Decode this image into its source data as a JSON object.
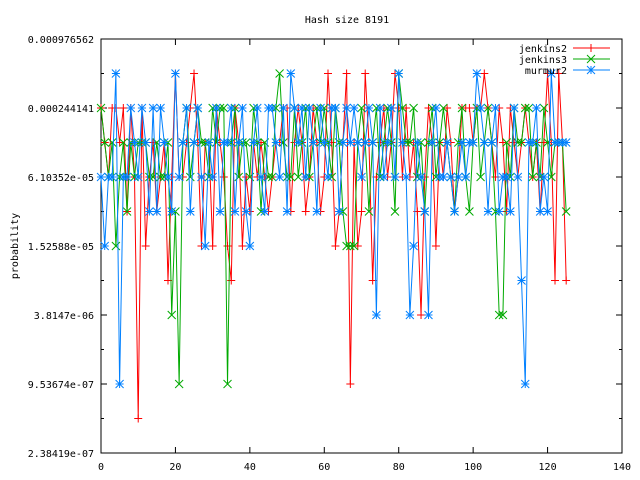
{
  "chart_data": {
    "type": "line",
    "title": "Hash size 8191",
    "xlabel": "",
    "ylabel": "probability",
    "xlim": [
      0,
      140
    ],
    "ylim": [
      2.38419e-07,
      0.000976562
    ],
    "yscale": "log2",
    "xticks": [
      "0",
      "20",
      "40",
      "60",
      "80",
      "100",
      "120",
      "140"
    ],
    "xtick_values": [
      0,
      20,
      40,
      60,
      80,
      100,
      120,
      140
    ],
    "yticks": [
      "0.000976562",
      "0.000244141",
      "6.10352e-05",
      "1.52588e-05",
      "3.8147e-06",
      "9.53674e-07",
      "2.38419e-07"
    ],
    "ytick_exponents": [
      -10,
      -12,
      -14,
      -16,
      -18,
      -20,
      -22
    ],
    "legend_position": "top-right",
    "series_note": "values given as base-2 exponents of probability (probability = 2^v), x = 0..125",
    "series": [
      {
        "name": "jenkins2",
        "color": "#ff0000",
        "marker": "plus",
        "values": [
          -12,
          -13,
          -14,
          -12,
          -12,
          -13,
          -12,
          -15,
          -12,
          -14,
          -21,
          -12,
          -16,
          -14,
          -13,
          -15,
          -14,
          -13,
          -17,
          -14,
          -11,
          -14,
          -14,
          -13,
          -12,
          -11,
          -13,
          -16,
          -13,
          -13,
          -16,
          -12,
          -13,
          -14,
          -16,
          -17,
          -12,
          -13,
          -16,
          -14,
          -15,
          -13,
          -14,
          -13,
          -14,
          -15,
          -14,
          -13,
          -13,
          -12,
          -12,
          -15,
          -13,
          -12,
          -13,
          -15,
          -14,
          -12,
          -13,
          -15,
          -14,
          -11,
          -13,
          -16,
          -15,
          -13,
          -11,
          -20,
          -13,
          -16,
          -15,
          -11,
          -13,
          -17,
          -14,
          -13,
          -12,
          -14,
          -13,
          -11,
          -12,
          -14,
          -12,
          -14,
          -13,
          -15,
          -18,
          -14,
          -12,
          -13,
          -16,
          -13,
          -14,
          -12,
          -13,
          -15,
          -14,
          -12,
          -12,
          -12,
          -13,
          -12,
          -12,
          -11,
          -12,
          -13,
          -14,
          -12,
          -13,
          -15,
          -12,
          -13,
          -14,
          -13,
          -12,
          -13,
          -14,
          -13,
          -15,
          -13,
          -11,
          -13,
          -17,
          -11,
          -13,
          -17
        ]
      },
      {
        "name": "jenkins3",
        "color": "#00aa00",
        "marker": "cross",
        "values": [
          -12,
          -13,
          -14,
          -13,
          -16,
          -14,
          -13,
          -15,
          -13,
          -14,
          -13,
          -13,
          -13,
          -14,
          -14,
          -13,
          -14,
          -14,
          -13,
          -18,
          -15,
          -20,
          -13,
          -12,
          -14,
          -13,
          -12,
          -13,
          -13,
          -14,
          -12,
          -13,
          -12,
          -12,
          -20,
          -13,
          -12,
          -14,
          -13,
          -13,
          -14,
          -12,
          -13,
          -15,
          -13,
          -14,
          -14,
          -12,
          -11,
          -13,
          -14,
          -14,
          -12,
          -14,
          -13,
          -12,
          -14,
          -13,
          -12,
          -13,
          -12,
          -13,
          -14,
          -12,
          -13,
          -15,
          -16,
          -16,
          -16,
          -13,
          -12,
          -13,
          -15,
          -13,
          -12,
          -14,
          -13,
          -12,
          -13,
          -15,
          -11,
          -12,
          -13,
          -13,
          -12,
          -14,
          -13,
          -15,
          -13,
          -12,
          -14,
          -13,
          -12,
          -13,
          -14,
          -15,
          -13,
          -12,
          -14,
          -15,
          -13,
          -12,
          -14,
          -13,
          -12,
          -13,
          -15,
          -18,
          -18,
          -13,
          -14,
          -12,
          -13,
          -13,
          -12,
          -12,
          -14,
          -13,
          -14,
          -12,
          -13,
          -14,
          -13,
          -13,
          -13,
          -15
        ]
      },
      {
        "name": "murmur2",
        "color": "#0080ff",
        "marker": "star",
        "values": [
          -14,
          -16,
          -14,
          -14,
          -11,
          -20,
          -14,
          -14,
          -12,
          -13,
          -14,
          -12,
          -13,
          -15,
          -12,
          -15,
          -12,
          -13,
          -14,
          -15,
          -11,
          -14,
          -13,
          -12,
          -15,
          -13,
          -12,
          -14,
          -16,
          -13,
          -14,
          -12,
          -15,
          -13,
          -13,
          -12,
          -15,
          -13,
          -12,
          -15,
          -16,
          -13,
          -12,
          -14,
          -15,
          -12,
          -12,
          -13,
          -14,
          -12,
          -15,
          -11,
          -12,
          -13,
          -12,
          -14,
          -12,
          -13,
          -15,
          -12,
          -13,
          -14,
          -12,
          -12,
          -15,
          -13,
          -12,
          -13,
          -12,
          -13,
          -14,
          -13,
          -12,
          -13,
          -18,
          -12,
          -14,
          -13,
          -12,
          -14,
          -11,
          -13,
          -14,
          -18,
          -16,
          -13,
          -14,
          -15,
          -18,
          -13,
          -12,
          -14,
          -14,
          -13,
          -14,
          -15,
          -14,
          -13,
          -14,
          -13,
          -13,
          -11,
          -12,
          -13,
          -15,
          -13,
          -12,
          -15,
          -14,
          -14,
          -15,
          -12,
          -14,
          -17,
          -20,
          -13,
          -13,
          -12,
          -15,
          -14,
          -15,
          -11,
          -13,
          -13,
          -13,
          -13
        ]
      }
    ]
  }
}
